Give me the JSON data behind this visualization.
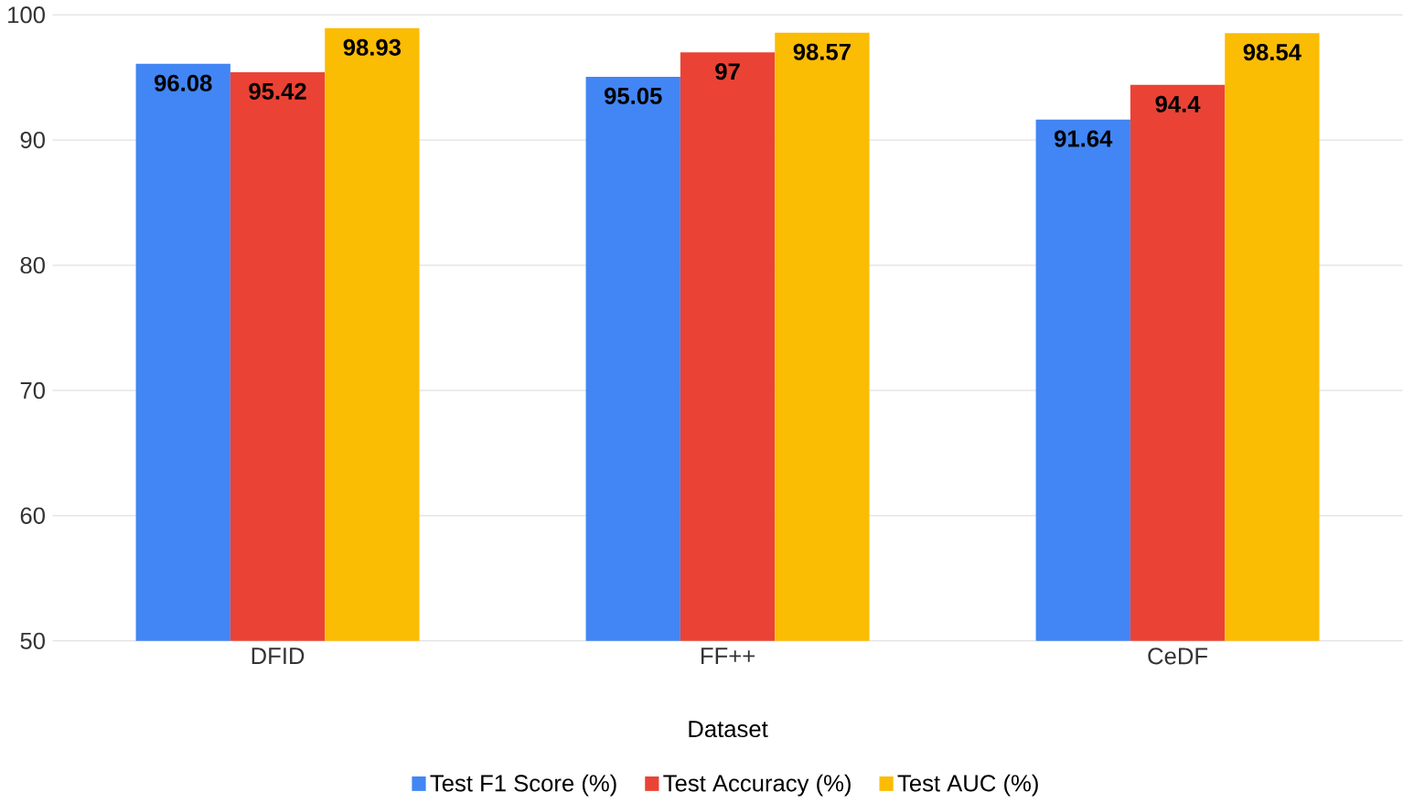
{
  "chart_data": {
    "type": "bar",
    "xlabel": "Dataset",
    "categories": [
      "DFID",
      "FF++",
      "CeDF"
    ],
    "series": [
      {
        "name": "Test F1 Score (%)",
        "color": "#4285f4",
        "values": [
          96.08,
          95.05,
          91.64
        ]
      },
      {
        "name": "Test Accuracy (%)",
        "color": "#ea4335",
        "values": [
          95.42,
          97,
          94.4
        ]
      },
      {
        "name": "Test AUC (%)",
        "color": "#fbbc04",
        "values": [
          98.93,
          98.57,
          98.54
        ]
      }
    ],
    "ylim": [
      50,
      100
    ],
    "yticks": [
      50,
      60,
      70,
      80,
      90,
      100
    ],
    "grid": "y",
    "legend": "bottom",
    "data_labels": true
  }
}
